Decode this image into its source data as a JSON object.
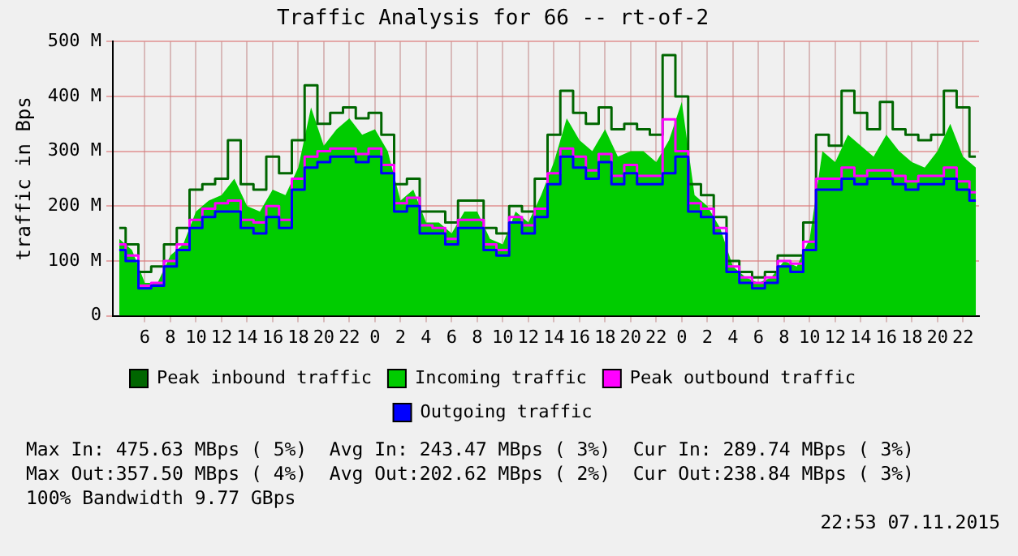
{
  "chart_data": {
    "type": "line",
    "title": "Traffic Analysis for 66 -- rt-of-2",
    "ylabel": "traffic in Bps",
    "x": [
      "2015-11-05T04:00",
      "2015-11-05T05:00",
      "2015-11-05T06:00",
      "2015-11-05T07:00",
      "2015-11-05T08:00",
      "2015-11-05T09:00",
      "2015-11-05T10:00",
      "2015-11-05T11:00",
      "2015-11-05T12:00",
      "2015-11-05T13:00",
      "2015-11-05T14:00",
      "2015-11-05T15:00",
      "2015-11-05T16:00",
      "2015-11-05T17:00",
      "2015-11-05T18:00",
      "2015-11-05T19:00",
      "2015-11-05T20:00",
      "2015-11-05T21:00",
      "2015-11-05T22:00",
      "2015-11-05T23:00",
      "2015-11-06T00:00",
      "2015-11-06T01:00",
      "2015-11-06T02:00",
      "2015-11-06T03:00",
      "2015-11-06T04:00",
      "2015-11-06T05:00",
      "2015-11-06T06:00",
      "2015-11-06T07:00",
      "2015-11-06T08:00",
      "2015-11-06T09:00",
      "2015-11-06T10:00",
      "2015-11-06T11:00",
      "2015-11-06T12:00",
      "2015-11-06T13:00",
      "2015-11-06T14:00",
      "2015-11-06T15:00",
      "2015-11-06T16:00",
      "2015-11-06T17:00",
      "2015-11-06T18:00",
      "2015-11-06T19:00",
      "2015-11-06T20:00",
      "2015-11-06T21:00",
      "2015-11-06T22:00",
      "2015-11-06T23:00",
      "2015-11-07T00:00",
      "2015-11-07T01:00",
      "2015-11-07T02:00",
      "2015-11-07T03:00",
      "2015-11-07T04:00",
      "2015-11-07T05:00",
      "2015-11-07T06:00",
      "2015-11-07T07:00",
      "2015-11-07T08:00",
      "2015-11-07T09:00",
      "2015-11-07T10:00",
      "2015-11-07T11:00",
      "2015-11-07T12:00",
      "2015-11-07T13:00",
      "2015-11-07T14:00",
      "2015-11-07T15:00",
      "2015-11-07T16:00",
      "2015-11-07T17:00",
      "2015-11-07T18:00",
      "2015-11-07T19:00",
      "2015-11-07T20:00",
      "2015-11-07T21:00",
      "2015-11-07T22:00",
      "2015-11-07T23:00"
    ],
    "series": [
      {
        "name": "Incoming traffic",
        "type": "area",
        "color": "#00cc00",
        "values": [
          140,
          120,
          60,
          60,
          110,
          130,
          190,
          210,
          220,
          250,
          200,
          190,
          230,
          220,
          270,
          380,
          310,
          340,
          360,
          330,
          340,
          300,
          210,
          230,
          170,
          170,
          150,
          190,
          190,
          140,
          130,
          190,
          170,
          220,
          280,
          360,
          320,
          300,
          340,
          290,
          300,
          300,
          280,
          320,
          390,
          220,
          200,
          160,
          90,
          70,
          60,
          70,
          100,
          90,
          140,
          300,
          280,
          330,
          310,
          290,
          330,
          300,
          280,
          270,
          300,
          350,
          290,
          270
        ]
      },
      {
        "name": "Peak inbound traffic",
        "type": "step",
        "color": "#006600",
        "values": [
          160,
          130,
          80,
          90,
          130,
          160,
          230,
          240,
          250,
          320,
          240,
          230,
          290,
          260,
          320,
          420,
          350,
          370,
          380,
          360,
          370,
          330,
          240,
          250,
          190,
          190,
          170,
          210,
          210,
          160,
          150,
          200,
          190,
          250,
          330,
          410,
          370,
          350,
          380,
          340,
          350,
          340,
          330,
          475,
          400,
          240,
          220,
          180,
          100,
          80,
          70,
          80,
          110,
          110,
          170,
          330,
          310,
          410,
          370,
          340,
          390,
          340,
          330,
          320,
          330,
          410,
          380,
          290
        ]
      },
      {
        "name": "Peak outbound traffic",
        "type": "step",
        "color": "#ff00ff",
        "values": [
          130,
          110,
          55,
          60,
          100,
          130,
          175,
          195,
          205,
          210,
          175,
          170,
          200,
          175,
          250,
          290,
          300,
          305,
          305,
          295,
          305,
          275,
          205,
          215,
          165,
          160,
          140,
          175,
          175,
          130,
          120,
          180,
          165,
          195,
          260,
          305,
          290,
          265,
          295,
          255,
          275,
          255,
          255,
          358,
          300,
          205,
          195,
          160,
          90,
          70,
          60,
          70,
          100,
          95,
          135,
          250,
          250,
          270,
          255,
          265,
          265,
          255,
          245,
          255,
          255,
          270,
          245,
          225
        ]
      },
      {
        "name": "Outgoing traffic",
        "type": "step",
        "color": "#0000ff",
        "values": [
          120,
          100,
          50,
          55,
          90,
          120,
          160,
          180,
          190,
          190,
          160,
          150,
          180,
          160,
          230,
          270,
          280,
          290,
          290,
          280,
          290,
          260,
          190,
          200,
          150,
          150,
          130,
          160,
          160,
          120,
          110,
          170,
          150,
          180,
          240,
          290,
          270,
          250,
          280,
          240,
          260,
          240,
          240,
          260,
          290,
          190,
          180,
          150,
          80,
          60,
          50,
          60,
          90,
          80,
          120,
          230,
          230,
          250,
          240,
          250,
          250,
          240,
          230,
          240,
          240,
          250,
          230,
          210
        ]
      }
    ],
    "xlim": [
      "2015-11-05T03:30",
      "2015-11-07T23:15"
    ],
    "xticks": [
      {
        "value": "2015-11-05T06:00",
        "label": "6"
      },
      {
        "value": "2015-11-05T08:00",
        "label": "8"
      },
      {
        "value": "2015-11-05T10:00",
        "label": "10"
      },
      {
        "value": "2015-11-05T12:00",
        "label": "12"
      },
      {
        "value": "2015-11-05T14:00",
        "label": "14"
      },
      {
        "value": "2015-11-05T16:00",
        "label": "16"
      },
      {
        "value": "2015-11-05T18:00",
        "label": "18"
      },
      {
        "value": "2015-11-05T20:00",
        "label": "20"
      },
      {
        "value": "2015-11-05T22:00",
        "label": "22"
      },
      {
        "value": "2015-11-06T00:00",
        "label": "0"
      },
      {
        "value": "2015-11-06T02:00",
        "label": "2"
      },
      {
        "value": "2015-11-06T04:00",
        "label": "4"
      },
      {
        "value": "2015-11-06T06:00",
        "label": "6"
      },
      {
        "value": "2015-11-06T08:00",
        "label": "8"
      },
      {
        "value": "2015-11-06T10:00",
        "label": "10"
      },
      {
        "value": "2015-11-06T12:00",
        "label": "12"
      },
      {
        "value": "2015-11-06T14:00",
        "label": "14"
      },
      {
        "value": "2015-11-06T16:00",
        "label": "16"
      },
      {
        "value": "2015-11-06T18:00",
        "label": "18"
      },
      {
        "value": "2015-11-06T20:00",
        "label": "20"
      },
      {
        "value": "2015-11-06T22:00",
        "label": "22"
      },
      {
        "value": "2015-11-07T00:00",
        "label": "0"
      },
      {
        "value": "2015-11-07T02:00",
        "label": "2"
      },
      {
        "value": "2015-11-07T04:00",
        "label": "4"
      },
      {
        "value": "2015-11-07T06:00",
        "label": "6"
      },
      {
        "value": "2015-11-07T08:00",
        "label": "8"
      },
      {
        "value": "2015-11-07T10:00",
        "label": "10"
      },
      {
        "value": "2015-11-07T12:00",
        "label": "12"
      },
      {
        "value": "2015-11-07T14:00",
        "label": "14"
      },
      {
        "value": "2015-11-07T16:00",
        "label": "16"
      },
      {
        "value": "2015-11-07T18:00",
        "label": "18"
      },
      {
        "value": "2015-11-07T20:00",
        "label": "20"
      },
      {
        "value": "2015-11-07T22:00",
        "label": "22"
      }
    ],
    "ylim": [
      0,
      500
    ],
    "yticks": [
      0,
      {
        "value": 100,
        "label": "100 M"
      },
      {
        "value": 200,
        "label": "200 M"
      },
      {
        "value": 300,
        "label": "300 M"
      },
      {
        "value": 400,
        "label": "400 M"
      },
      {
        "value": 500,
        "label": "500 M"
      }
    ],
    "grid": true,
    "legend": "bottom",
    "annotations": [
      "Max In: 475.63 MBps ( 5%)  Avg In: 243.47 MBps ( 3%)  Cur In: 289.74 MBps ( 3%)",
      "Max Out:357.50 MBps ( 4%)  Avg Out:202.62 MBps ( 2%)  Cur Out:238.84 MBps ( 3%)",
      "100% Bandwidth 9.77 GBps",
      "22:53 07.11.2015"
    ]
  }
}
